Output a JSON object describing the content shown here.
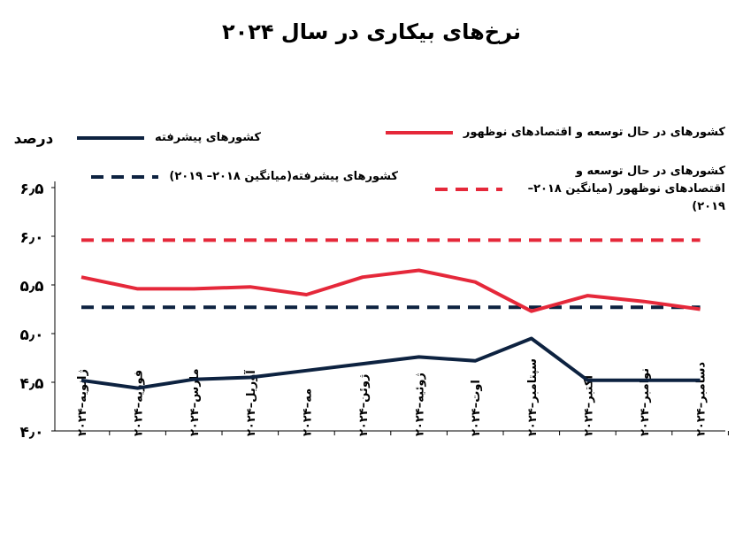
{
  "chart_data": {
    "type": "line",
    "title": "نرخ‌های بیکاری در سال ۲۰۲۴",
    "y_label": "درصد",
    "categories": [
      "ژانویه–۲۰۲۴",
      "فوریه–۲۰۲۴",
      "مارس–۲۰۲۴",
      "آوریل–۲۰۲۴",
      "مه–۲۰۲۴",
      "ژوئن–۲۰۲۴",
      "ژوئیه–۲۰۲۴",
      "اوت–۲۰۲۴",
      "سپتامبر–۲۰۲۴",
      "اکتبر–۲۰۲۴",
      "نوامبر–۲۰۲۴",
      "دسامبر–۲۰۲۴"
    ],
    "series": [
      {
        "name": "کشورهای پیشرفته",
        "color": "#0d2240",
        "dashed": false,
        "values": [
          4.52,
          4.44,
          4.53,
          4.55,
          4.62,
          4.69,
          4.76,
          4.72,
          4.95,
          4.52,
          4.52,
          4.52
        ]
      },
      {
        "name": "کشورهای پیشرفته(میانگین ۲۰۱۸– ۲۰۱۹)",
        "color": "#0d2240",
        "dashed": true,
        "values": [
          5.27,
          5.27,
          5.27,
          5.27,
          5.27,
          5.27,
          5.27,
          5.27,
          5.27,
          5.27,
          5.27,
          5.27
        ]
      },
      {
        "name": "کشورهای در حال توسعه و اقتصادهای نوظهور",
        "color": "#e5283a",
        "dashed": false,
        "values": [
          5.58,
          5.46,
          5.46,
          5.48,
          5.4,
          5.58,
          5.65,
          5.53,
          5.23,
          5.39,
          5.33,
          5.25
        ]
      },
      {
        "name": "کشورهای در حال توسعه و اقتصادهای نوظهور (میانگین ۲۰۱۸– ۲۰۱۹)",
        "color": "#e5283a",
        "dashed": true,
        "values": [
          5.96,
          5.96,
          5.96,
          5.96,
          5.96,
          5.96,
          5.96,
          5.96,
          5.96,
          5.96,
          5.96,
          5.96
        ]
      }
    ],
    "ylim": [
      4.0,
      6.5
    ],
    "yticks": [
      {
        "value": 4.0,
        "label": "۴٫۰"
      },
      {
        "value": 4.5,
        "label": "۴٫۵"
      },
      {
        "value": 5.0,
        "label": "۵٫۰"
      },
      {
        "value": 5.5,
        "label": "۵٫۵"
      },
      {
        "value": 6.0,
        "label": "۶٫۰"
      },
      {
        "value": 6.5,
        "label": "۶٫۵"
      }
    ],
    "grid": false
  }
}
